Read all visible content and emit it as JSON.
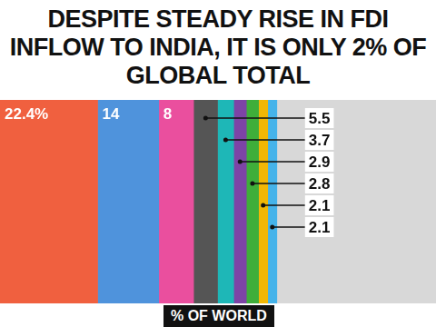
{
  "chart_data": {
    "type": "bar",
    "title": "DESPITE STEADY RISE IN FDI INFLOW TO INDIA, IT IS ONLY 2% OF GLOBAL TOTAL",
    "xlabel": "% OF WORLD",
    "orientation": "horizontal",
    "stacked": true,
    "grid": false,
    "tick_labels": false,
    "data_labels": true,
    "values": [
      22.4,
      14,
      8,
      5.5,
      3.7,
      2.9,
      2.8,
      2.1,
      2.1
    ],
    "value_labels": [
      "22.4%",
      "14",
      "8",
      "5.5",
      "3.7",
      "2.9",
      "2.8",
      "2.1",
      "2.1"
    ],
    "colors": [
      "#f0603f",
      "#4f93dc",
      "#ea4f9e",
      "#555555",
      "#1eb7b7",
      "#7d44a6",
      "#3fae3a",
      "#f2b705",
      "#45b3ea"
    ],
    "xlim": [
      0,
      100
    ]
  }
}
